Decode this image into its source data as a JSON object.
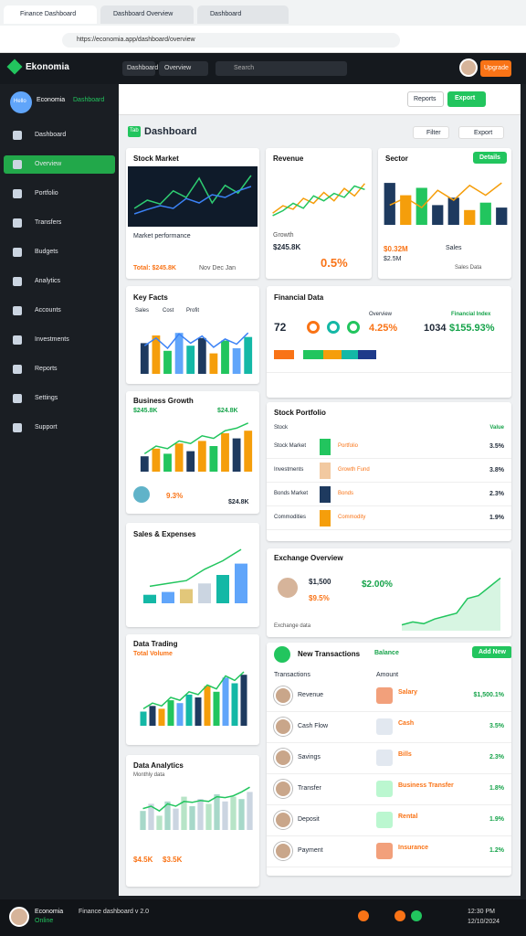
{
  "browser": {
    "tabs": [
      "Finance Dashboard",
      "Dashboard Overview",
      "Dashboard"
    ],
    "url": "https://economia.app/dashboard/overview"
  },
  "header": {
    "logo": "Ekonomia",
    "nav": [
      "Dashboard",
      "Overview"
    ],
    "search": "Search",
    "button": "Upgrade"
  },
  "sidebar": {
    "avatar": "Hello",
    "user": "Economia",
    "role": "Dashboard",
    "items": [
      "Dashboard",
      "Overview",
      "Portfolio",
      "Transfers",
      "Budgets",
      "Analytics",
      "Accounts",
      "Investments",
      "Reports",
      "Settings",
      "Support"
    ],
    "active": 1
  },
  "toolbar": {
    "buttons": [
      "Reports",
      "Export"
    ]
  },
  "title": {
    "badge": "Tab",
    "text": "Dashboard",
    "actions": [
      "Filter",
      "Export"
    ]
  },
  "cards": {
    "stock": {
      "title": "Stock Market",
      "caption": "Market performance",
      "footer": "Total: $245.8K",
      "months": "Nov Dec Jan",
      "chart": {
        "type": "line",
        "ylim": [
          0,
          100
        ],
        "series": [
          {
            "type": "line",
            "color": "#2ecc71",
            "values": [
              30,
              45,
              38,
              62,
              50,
              85,
              40,
              72,
              58,
              90
            ]
          },
          {
            "type": "line",
            "color": "#3b82f6",
            "values": [
              20,
              28,
              35,
              30,
              48,
              40,
              55,
              50,
              62,
              70
            ]
          }
        ]
      }
    },
    "revenue": {
      "title": "Revenue",
      "value": "$245.8K",
      "label": "Growth",
      "big": "0.5%",
      "chart": {
        "type": "line",
        "ylim": [
          0,
          100
        ],
        "series": [
          {
            "type": "line",
            "color": "#f59e0b",
            "values": [
              20,
              35,
              28,
              50,
              40,
              62,
              45,
              70,
              55,
              80
            ]
          },
          {
            "type": "line",
            "color": "#22c55e",
            "values": [
              15,
              25,
              40,
              30,
              55,
              45,
              60,
              52,
              75,
              68
            ]
          }
        ]
      }
    },
    "sector": {
      "title": "Sector",
      "button": "Details",
      "value": "$0.32M",
      "label": "Sales",
      "total": "$2.5M",
      "legend": "Sales Data",
      "chart": {
        "type": "bar",
        "ylim": [
          0,
          100
        ],
        "series": [
          {
            "type": "bar",
            "colors": [
              "#1e3a5f",
              "#f59e0b",
              "#22c55e",
              "#1e3a5f"
            ],
            "values": [
              85,
              60,
              75,
              40,
              55,
              30,
              45,
              35
            ]
          },
          {
            "type": "line",
            "color": "#f59e0b",
            "values": [
              40,
              55,
              35,
              70,
              50,
              80,
              60,
              85
            ]
          }
        ]
      }
    },
    "facts": {
      "title": "Key Facts",
      "legend": [
        "Sales",
        "Cost",
        "Profit"
      ],
      "chart": {
        "type": "bar",
        "ylim": [
          0,
          100
        ],
        "series": [
          {
            "type": "bar",
            "colors": [
              "#1e3a5f",
              "#f59e0b",
              "#22c55e",
              "#60a5fa",
              "#14b8a6"
            ],
            "values": [
              60,
              75,
              45,
              80,
              55,
              70,
              40,
              65,
              50,
              72
            ]
          },
          {
            "type": "line",
            "color": "#3b82f6",
            "values": [
              55,
              70,
              50,
              78,
              60,
              74,
              52,
              68,
              58,
              80
            ]
          }
        ]
      }
    },
    "growth": {
      "title": "Business Growth",
      "value": "$245.8K",
      "right": "$24.8K",
      "pct": "9.3%",
      "sub": "$24.8K",
      "chart": {
        "type": "bar",
        "ylim": [
          0,
          100
        ],
        "series": [
          {
            "type": "bar",
            "colors": [
              "#1e3a5f",
              "#f59e0b",
              "#22c55e",
              "#f59e0b"
            ],
            "values": [
              30,
              45,
              35,
              55,
              40,
              60,
              50,
              75,
              65,
              80
            ]
          },
          {
            "type": "line",
            "color": "#22c55e",
            "values": [
              35,
              50,
              45,
              60,
              55,
              70,
              65,
              80,
              85,
              95
            ]
          }
        ]
      }
    },
    "sales": {
      "title": "Sales & Expenses",
      "chart": {
        "type": "bar",
        "ylim": [
          0,
          100
        ],
        "series": [
          {
            "type": "bar",
            "colors": [
              "#14b8a6",
              "#60a5fa",
              "#e2c77a",
              "#cbd5e1"
            ],
            "values": [
              15,
              20,
              25,
              35,
              50,
              70
            ]
          },
          {
            "type": "line",
            "color": "#22c55e",
            "values": [
              30,
              35,
              40,
              60,
              75,
              95
            ]
          }
        ]
      }
    },
    "trading": {
      "title": "Data Trading",
      "sub": "Total Volume",
      "chart": {
        "type": "bar",
        "ylim": [
          0,
          100
        ],
        "series": [
          {
            "type": "bar",
            "colors": [
              "#14b8a6",
              "#1e3a5f",
              "#f59e0b",
              "#22c55e",
              "#60a5fa"
            ],
            "values": [
              25,
              35,
              30,
              45,
              40,
              55,
              50,
              70,
              60,
              85,
              75,
              90
            ]
          },
          {
            "type": "line",
            "color": "#22c55e",
            "values": [
              30,
              40,
              35,
              50,
              45,
              60,
              55,
              72,
              65,
              88,
              80,
              95
            ]
          }
        ]
      }
    },
    "analytics": {
      "title": "Data Analytics",
      "sub": "Monthly data",
      "footer": "$4.5K",
      "footer2": "$3.5K",
      "chart": {
        "type": "bar",
        "ylim": [
          0,
          100
        ],
        "series": [
          {
            "type": "bar",
            "colors": [
              "#a7d8c9",
              "#cbd5e1",
              "#b7e4c7"
            ],
            "values": [
              40,
              55,
              30,
              60,
              45,
              70,
              50,
              65,
              55,
              75,
              60,
              70,
              65,
              80
            ]
          },
          {
            "type": "line",
            "color": "#22c55e",
            "values": [
              45,
              50,
              40,
              55,
              50,
              60,
              58,
              62,
              60,
              70,
              68,
              72,
              80,
              90
            ]
          }
        ]
      }
    },
    "financial": {
      "title": "Financial Data",
      "count": "72",
      "label": "Overview",
      "link": "Financial Index",
      "pct": "4.25%",
      "n": "1034",
      "big": "$155.93%"
    },
    "portfolio": {
      "title": "Stock Portfolio",
      "head": [
        "Stock",
        "Value"
      ],
      "rows": [
        {
          "name": "Stock Market",
          "label": "Portfolio",
          "value": "3.5%",
          "color": "#22c55e"
        },
        {
          "name": "Investments",
          "label": "Growth Fund",
          "value": "3.8%",
          "color": "#f2c9a0"
        },
        {
          "name": "Bonds Market",
          "label": "Bonds",
          "value": "2.3%",
          "color": "#1e3a5f"
        },
        {
          "name": "Commodities",
          "label": "Commodity",
          "value": "1.9%",
          "color": "#f59e0b"
        }
      ]
    },
    "exchange": {
      "title": "Exchange Overview",
      "value": "$1,500",
      "sub": "$9.5%",
      "pct": "$2.00%",
      "foot": "Exchange data",
      "chart": {
        "type": "area",
        "ylim": [
          0,
          100
        ],
        "series": [
          {
            "type": "area",
            "color": "#22c55e",
            "values": [
              10,
              15,
              12,
              20,
              25,
              30,
              55,
              60,
              75,
              90
            ]
          }
        ]
      }
    },
    "transactions": {
      "title": "New Transactions",
      "badge": "Balance",
      "button": "Add New",
      "head": [
        "Transactions",
        "Amount"
      ],
      "rows": [
        {
          "name": "Revenue",
          "label": "Salary",
          "value": "$1,500.1%",
          "color": "#f2a07b"
        },
        {
          "name": "Cash Flow",
          "label": "Cash",
          "value": "3.5%",
          "color": "#e2e8f0"
        },
        {
          "name": "Savings",
          "label": "Bills",
          "value": "2.3%",
          "color": "#e2e8f0"
        },
        {
          "name": "Transfer",
          "label": "Business Transfer",
          "value": "1.8%",
          "color": "#bbf7d0"
        },
        {
          "name": "Deposit",
          "label": "Rental",
          "value": "1.9%",
          "color": "#bbf7d0"
        },
        {
          "name": "Payment",
          "label": "Insurance",
          "value": "1.2%",
          "color": "#f2a07b"
        }
      ]
    }
  },
  "taskbar": {
    "user": "Economia",
    "status": "Online",
    "text": "Finance dashboard v 2.0",
    "clock": "12:30 PM",
    "date": "12/10/2024"
  }
}
